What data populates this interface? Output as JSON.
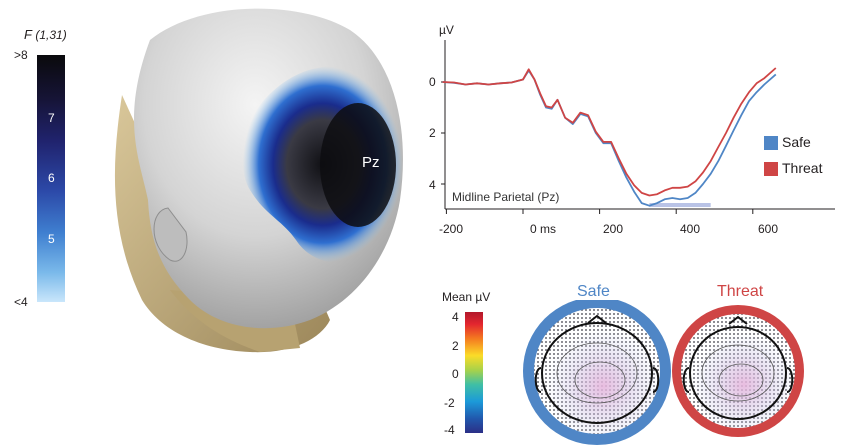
{
  "fscale": {
    "title": "F",
    "title_sub": "(1,31)",
    "top_label": ">8",
    "bottom_label": "<4",
    "ticks": [
      "7",
      "6",
      "5"
    ]
  },
  "head": {
    "electrode_label": "Pz"
  },
  "erp": {
    "ylabel": "µV",
    "yticks": [
      "0",
      "2",
      "4"
    ],
    "xticks": [
      "-200",
      "0 ms",
      "200",
      "400",
      "600"
    ],
    "annotation": "Midline Parietal (Pz)",
    "legend": [
      {
        "label": "Safe",
        "color": "#4f86c6"
      },
      {
        "label": "Threat",
        "color": "#cf4545"
      }
    ]
  },
  "chart_data": {
    "type": "line",
    "ylabel": "µV",
    "y_inverted": true,
    "ylim": [
      -0.8,
      5
    ],
    "xlim": [
      -230,
      700
    ],
    "x": [
      -210,
      -180,
      -150,
      -120,
      -90,
      -60,
      -30,
      0,
      15,
      30,
      45,
      60,
      75,
      90,
      110,
      130,
      150,
      170,
      190,
      210,
      230,
      250,
      270,
      290,
      310,
      330,
      350,
      370,
      390,
      410,
      430,
      450,
      470,
      490,
      510,
      530,
      550,
      570,
      590,
      610,
      630,
      660
    ],
    "series": [
      {
        "name": "Safe",
        "values": [
          0,
          0.03,
          0.1,
          0.05,
          0.1,
          0.05,
          0.02,
          -0.1,
          -0.45,
          -0.1,
          0.5,
          1.0,
          1.05,
          0.7,
          1.4,
          1.65,
          1.25,
          1.35,
          2.0,
          2.4,
          2.4,
          3.1,
          3.75,
          4.3,
          4.75,
          4.85,
          4.75,
          4.6,
          4.55,
          4.6,
          4.55,
          4.35,
          4.0,
          3.6,
          3.1,
          2.5,
          1.9,
          1.3,
          0.75,
          0.4,
          0.1,
          -0.3
        ]
      },
      {
        "name": "Threat",
        "values": [
          0,
          0.02,
          0.1,
          0.05,
          0.1,
          0.05,
          0.02,
          -0.1,
          -0.5,
          -0.1,
          0.45,
          0.95,
          1.0,
          0.7,
          1.4,
          1.6,
          1.2,
          1.3,
          1.95,
          2.35,
          2.35,
          3.0,
          3.6,
          4.05,
          4.35,
          4.45,
          4.4,
          4.25,
          4.15,
          4.15,
          4.1,
          3.9,
          3.55,
          3.1,
          2.55,
          2.0,
          1.4,
          0.85,
          0.4,
          0.05,
          -0.15,
          -0.55
        ]
      }
    ],
    "highlight_interval": [
      330,
      490
    ]
  },
  "topo": {
    "colorbar_title": "Mean µV",
    "colorbar_ticks": [
      "4",
      "2",
      "0",
      "-2",
      "-4"
    ],
    "maps": [
      {
        "label": "Safe",
        "color": "#4f86c6"
      },
      {
        "label": "Threat",
        "color": "#cf4545"
      }
    ]
  }
}
